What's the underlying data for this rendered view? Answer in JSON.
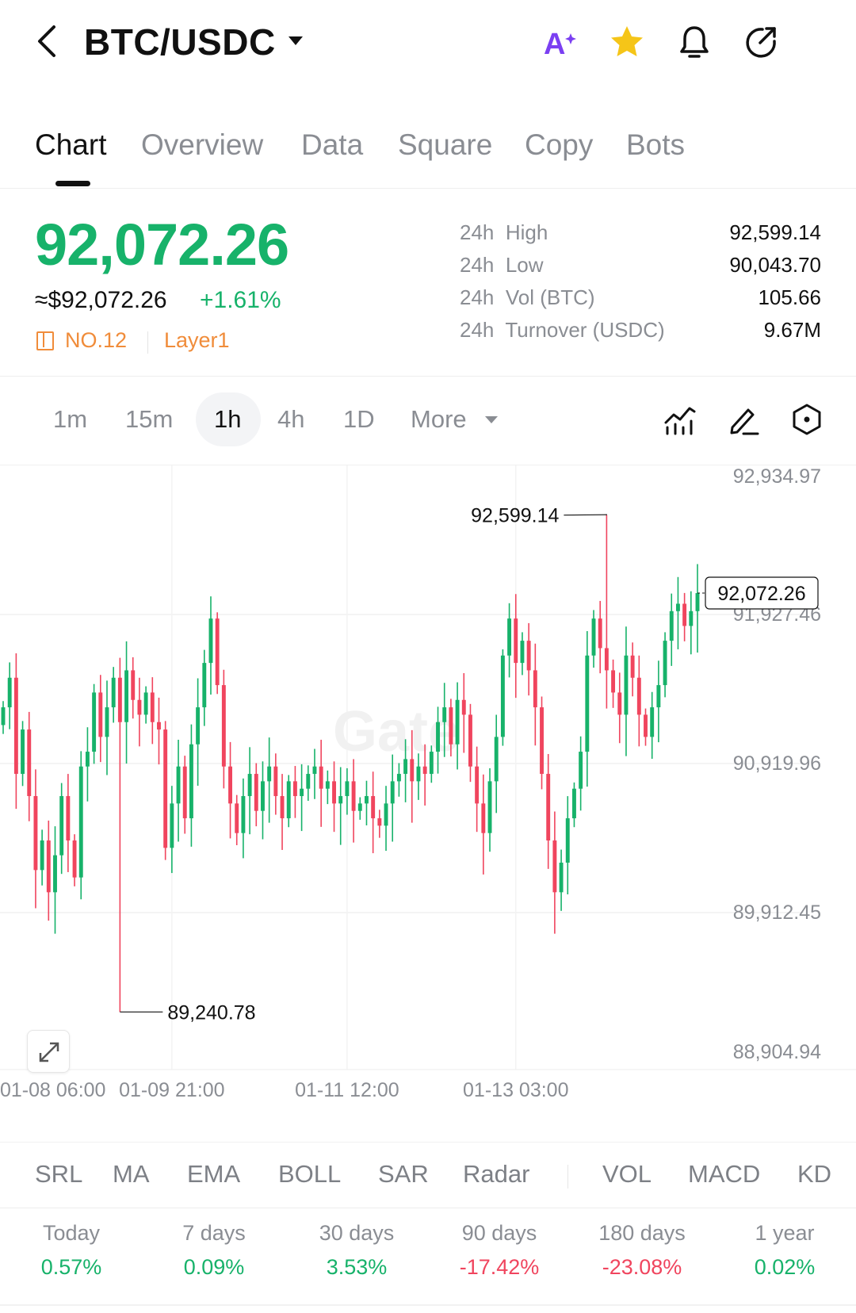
{
  "header": {
    "title": "BTC/USDC",
    "icons": [
      "back-icon",
      "ai-icon",
      "star-icon",
      "bell-icon",
      "share-icon"
    ],
    "ai_color": "#7b3ff2",
    "star_color": "#f5c518"
  },
  "tabs": [
    {
      "label": "Chart",
      "active": true
    },
    {
      "label": "Overview",
      "active": false
    },
    {
      "label": "Data",
      "active": false
    },
    {
      "label": "Square",
      "active": false
    },
    {
      "label": "Copy",
      "active": false
    },
    {
      "label": "Bots",
      "active": false
    }
  ],
  "price": {
    "last": "92,072.26",
    "approx": "≈$92,072.26",
    "change": "+1.61%",
    "rank": "NO.12",
    "tag": "Layer1",
    "up_color": "#17b26a",
    "down_color": "#f0455e"
  },
  "stats": [
    {
      "key": "24h  High",
      "value": "92,599.14"
    },
    {
      "key": "24h  Low",
      "value": "90,043.70"
    },
    {
      "key": "24h  Vol (BTC)",
      "value": "105.66"
    },
    {
      "key": "24h  Turnover (USDC)",
      "value": "9.67M"
    }
  ],
  "intervals": {
    "items": [
      "1m",
      "15m",
      "1h",
      "4h",
      "1D"
    ],
    "active": "1h",
    "more_label": "More"
  },
  "chart_data": {
    "type": "candlestick",
    "y_ticks": [
      "92,934.97",
      "91,927.46",
      "90,919.96",
      "89,912.45",
      "88,904.94"
    ],
    "x_ticks": [
      "01-08 06:00",
      "01-09 21:00",
      "01-11 12:00",
      "01-13 03:00"
    ],
    "ylim": [
      88904.94,
      92934.97
    ],
    "high_marker": "92,599.14",
    "low_marker": "89,240.78",
    "last_price": "92,072.26",
    "watermark": "Gate",
    "closes": [
      91300,
      91500,
      90850,
      91150,
      90700,
      90200,
      90400,
      90050,
      90300,
      90700,
      90400,
      90150,
      90900,
      91000,
      91400,
      91100,
      91300,
      91500,
      91200,
      91550,
      91350,
      91250,
      91400,
      91200,
      91150,
      90350,
      90650,
      90900,
      90550,
      91050,
      91300,
      91600,
      91900,
      91450,
      90900,
      90650,
      90450,
      90700,
      90850,
      90600,
      90800,
      90900,
      90700,
      90550,
      90800,
      90700,
      90750,
      90850,
      90900,
      90750,
      90800,
      90650,
      90700,
      90800,
      90600,
      90650,
      90700,
      90550,
      90500,
      90650,
      90800,
      90850,
      90950,
      90800,
      90900,
      90850,
      91000,
      91200,
      91300,
      91050,
      91350,
      91250,
      90900,
      90650,
      90450,
      90800,
      91100,
      91650,
      91900,
      91600,
      91750,
      91550,
      91300,
      90850,
      90400,
      90050,
      90250,
      90550,
      90750,
      91000,
      91650,
      91900,
      91700,
      91550,
      91400,
      91250,
      91650,
      91500,
      91250,
      91100,
      91300,
      91450,
      91750,
      91950,
      92000,
      91850,
      91950,
      92072
    ]
  },
  "indicators": [
    "SRL",
    "MA",
    "EMA",
    "BOLL",
    "SAR",
    "Radar",
    "VOL",
    "MACD",
    "KD"
  ],
  "performance": [
    {
      "label": "Today",
      "value": "0.57%",
      "dir": "up"
    },
    {
      "label": "7 days",
      "value": "0.09%",
      "dir": "up"
    },
    {
      "label": "30 days",
      "value": "3.53%",
      "dir": "up"
    },
    {
      "label": "90 days",
      "value": "-17.42%",
      "dir": "down"
    },
    {
      "label": "180 days",
      "value": "-23.08%",
      "dir": "down"
    },
    {
      "label": "1 year",
      "value": "0.02%",
      "dir": "up"
    }
  ]
}
